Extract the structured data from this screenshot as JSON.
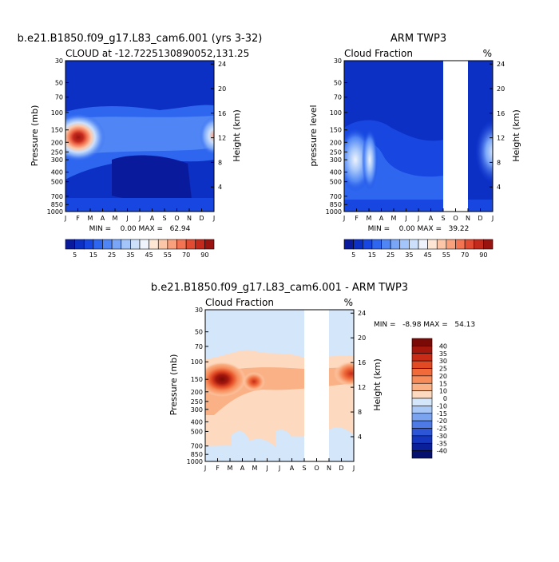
{
  "chart_data": [
    {
      "type": "heatmap",
      "title": "b.e21.B1850.f09_g17.L83_cam6.001 (yrs 3-32)",
      "subtitle": "CLOUD at -12.7225130890052,131.25",
      "xlabel": "",
      "ylabel": "Pressure (mb)",
      "ylabel_right": "Height (km)",
      "units": "",
      "stats": "MIN =    0.00 MAX =   62.94",
      "x_ticks": [
        "J",
        "F",
        "M",
        "A",
        "M",
        "J",
        "J",
        "A",
        "S",
        "O",
        "N",
        "D",
        "J"
      ],
      "y_ticks": [
        "30",
        "50",
        "70",
        "100",
        "150",
        "200",
        "250",
        "300",
        "400",
        "500",
        "700",
        "850",
        "1000"
      ],
      "y_ticks_right": [
        "24",
        "20",
        "16",
        "12",
        "8",
        "4"
      ],
      "y_scale": "log",
      "colorbar": [
        "5",
        "15",
        "25",
        "35",
        "45",
        "55",
        "70",
        "90"
      ],
      "colors": [
        "#0a1a9c",
        "#0c2fc4",
        "#1747e0",
        "#2e66f0",
        "#4f85f5",
        "#7aa6f8",
        "#a4c5fa",
        "#cce0fc",
        "#eef3fc",
        "#fde6d4",
        "#fcc7a8",
        "#f9a07c",
        "#f27452",
        "#e04b32",
        "#c42a1c",
        "#991310"
      ],
      "data": {
        "x": [
          "J",
          "F",
          "M",
          "A",
          "M",
          "J",
          "J",
          "A",
          "S",
          "O",
          "N",
          "D",
          "J"
        ],
        "pressure": [
          30,
          50,
          70,
          100,
          150,
          200,
          250,
          300,
          400,
          500,
          700,
          850,
          1000
        ],
        "max_value": 62.94,
        "features": [
          {
            "type": "max",
            "month": "F",
            "pressure": 150,
            "value": 62.9
          },
          {
            "type": "band",
            "pressure": [
              100,
              400
            ],
            "value": 25
          },
          {
            "type": "min",
            "pressure": [
              30,
              70
            ],
            "value": 2
          }
        ]
      }
    },
    {
      "type": "heatmap",
      "title": "ARM TWP3",
      "subtitle": "Cloud Fraction",
      "units": "%",
      "ylabel": "pressure level",
      "ylabel_right": "Height (km)",
      "stats": "MIN =    0.00 MAX =   39.22",
      "x_ticks": [
        "J",
        "F",
        "M",
        "A",
        "M",
        "J",
        "J",
        "A",
        "S",
        "O",
        "N",
        "D",
        "J"
      ],
      "y_ticks": [
        "30",
        "50",
        "70",
        "100",
        "150",
        "200",
        "250",
        "300",
        "400",
        "500",
        "700",
        "850",
        "1000"
      ],
      "y_ticks_right": [
        "24",
        "20",
        "16",
        "12",
        "8",
        "4"
      ],
      "missing_months": [
        "S",
        "O",
        "N"
      ],
      "colorbar": [
        "5",
        "15",
        "25",
        "35",
        "45",
        "55",
        "70",
        "90"
      ],
      "data": {
        "max_value": 39.22,
        "features": [
          {
            "type": "max",
            "month": "J",
            "pressure": 200,
            "value": 39
          }
        ]
      }
    },
    {
      "type": "heatmap",
      "title": "b.e21.B1850.f09_g17.L83_cam6.001 - ARM TWP3",
      "subtitle": "Cloud Fraction",
      "units": "%",
      "ylabel": "Pressure (mb)",
      "ylabel_right": "Height (km)",
      "stats": "MIN =   -8.98 MAX =   54.13",
      "x_ticks": [
        "J",
        "F",
        "M",
        "A",
        "M",
        "J",
        "J",
        "A",
        "S",
        "O",
        "N",
        "D",
        "J"
      ],
      "y_ticks": [
        "30",
        "50",
        "70",
        "100",
        "150",
        "200",
        "250",
        "300",
        "400",
        "500",
        "700",
        "850",
        "1000"
      ],
      "y_ticks_right": [
        "24",
        "20",
        "16",
        "12",
        "8",
        "4"
      ],
      "missing_months": [
        "S",
        "O",
        "N"
      ],
      "colorbar_labels": [
        "40",
        "35",
        "30",
        "25",
        "20",
        "15",
        "10",
        "0",
        "-10",
        "-15",
        "-20",
        "-25",
        "-30",
        "-35",
        "-40"
      ],
      "colors": [
        "#7a0a06",
        "#a3170d",
        "#c82c16",
        "#e24a24",
        "#f06a3a",
        "#f68c5a",
        "#fab186",
        "#fdd9bf",
        "#d4e6fa",
        "#a9c8f6",
        "#7aa3f0",
        "#4e7ae6",
        "#2d56d6",
        "#1537c0",
        "#0a1f9a",
        "#06106e"
      ],
      "data": {
        "max_value": 54.13,
        "min_value": -8.98,
        "features": [
          {
            "type": "max",
            "month": "F",
            "pressure": 150,
            "value": 54.1
          },
          {
            "type": "max",
            "month": "D",
            "pressure": 150,
            "value": 35
          }
        ]
      }
    }
  ]
}
